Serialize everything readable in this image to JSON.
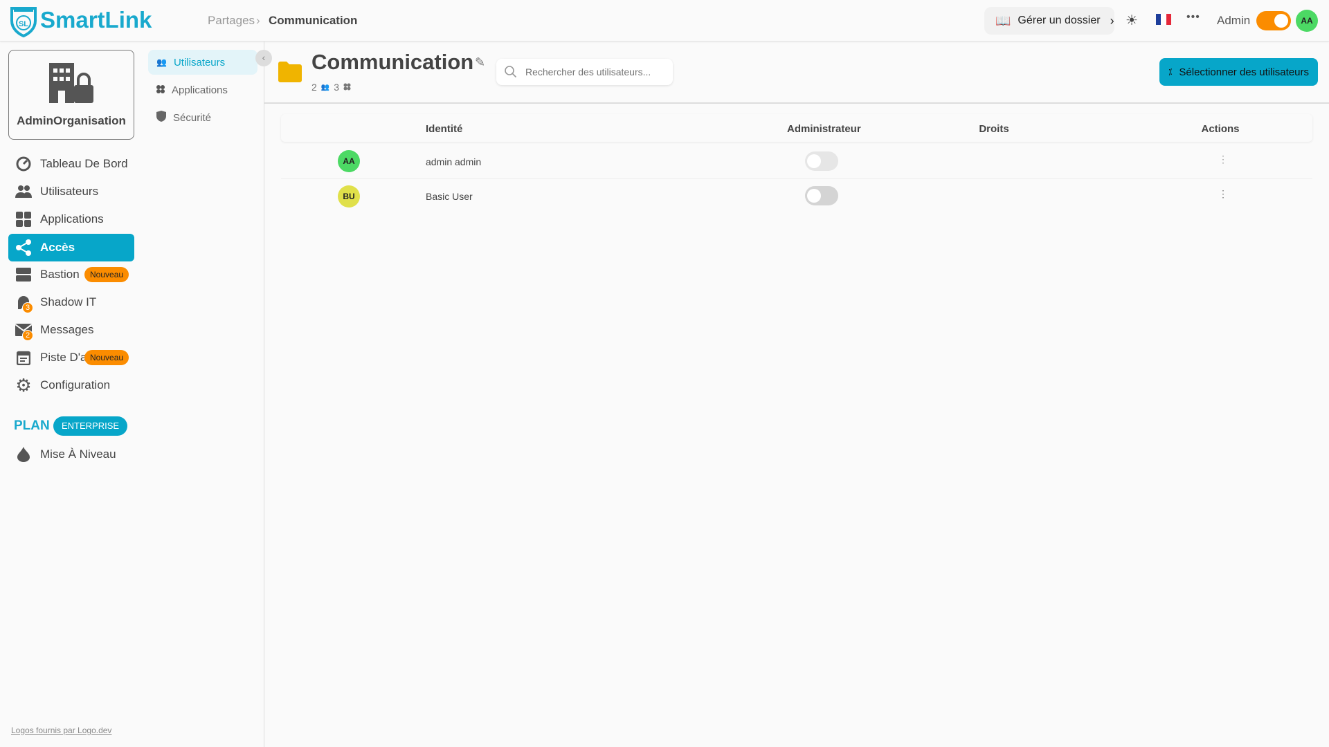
{
  "header": {
    "logo": "SmartLink",
    "breadcrumb": [
      "Partages",
      "Communication"
    ],
    "manage_folder": "Gérer un dossier",
    "user_label": "Admin",
    "user_initials": "AA",
    "admin_mode_on": true,
    "accent": "#07a6c9"
  },
  "sidebar": {
    "org_name": "AdminOrganisation",
    "items": [
      {
        "label": "Tableau De Bord",
        "icon": "dashboard-icon"
      },
      {
        "label": "Utilisateurs",
        "icon": "users-icon"
      },
      {
        "label": "Applications",
        "icon": "apps-icon"
      },
      {
        "label": "Accès",
        "icon": "share-icon",
        "active": true
      },
      {
        "label": "Bastion",
        "icon": "server-icon",
        "badge": "Nouveau"
      },
      {
        "label": "Shadow IT",
        "icon": "ghost-icon",
        "count": "3"
      },
      {
        "label": "Messages",
        "icon": "mail-icon",
        "count": "2"
      },
      {
        "label": "Piste D'audit",
        "icon": "calendar-icon",
        "badge": "Nouveau"
      },
      {
        "label": "Configuration",
        "icon": "gear-icon"
      }
    ],
    "plan_label": "PLAN",
    "plan_name": "ENTERPRISE",
    "upgrade": "Mise À Niveau",
    "footer_link": "Logos fournis par Logo.dev"
  },
  "subnav": {
    "items": [
      {
        "label": "Utilisateurs",
        "active": true
      },
      {
        "label": "Applications"
      },
      {
        "label": "Sécurité"
      }
    ]
  },
  "main": {
    "title": "Communication",
    "user_count": "2",
    "app_count": "3",
    "search_placeholder": "Rechercher des utilisateurs...",
    "select_button": "Sélectionner des utilisateurs",
    "columns": [
      "Identité",
      "Administrateur",
      "Droits",
      "Actions"
    ],
    "rows": [
      {
        "initials": "AA",
        "name": "admin admin",
        "avatar_color": "#4cd964",
        "admin": false
      },
      {
        "initials": "BU",
        "name": "Basic User",
        "avatar_color": "#e0e04a",
        "admin": false
      }
    ]
  }
}
